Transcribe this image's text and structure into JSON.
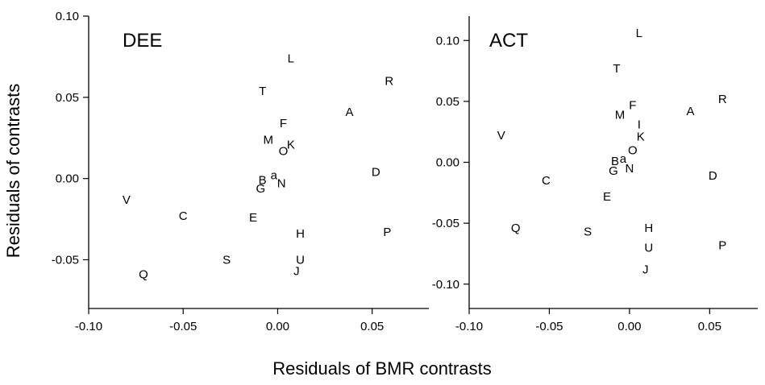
{
  "figure": {
    "shared_xlabel": "Residuals of BMR contrasts",
    "shared_ylabel": "Residuals of contrasts"
  },
  "chart_data": [
    {
      "type": "scatter",
      "title": "DEE",
      "xlabel": "Residuals of BMR contrasts",
      "ylabel": "Residuals of contrasts",
      "xlim": [
        -0.1,
        0.08
      ],
      "ylim": [
        -0.08,
        0.1
      ],
      "xticks": [
        -0.1,
        -0.05,
        0.0,
        0.05
      ],
      "xtick_labels": [
        "-0.10",
        "-0.05",
        "0.00",
        "0.05"
      ],
      "yticks": [
        -0.05,
        0.0,
        0.05,
        0.1
      ],
      "ytick_labels": [
        "-0.05",
        "0.00",
        "0.05",
        "0.10"
      ],
      "grid": false,
      "points": [
        {
          "label": "L",
          "x": 0.007,
          "y": 0.074
        },
        {
          "label": "R",
          "x": 0.059,
          "y": 0.06
        },
        {
          "label": "T",
          "x": -0.008,
          "y": 0.054
        },
        {
          "label": "A",
          "x": 0.038,
          "y": 0.041
        },
        {
          "label": "F",
          "x": 0.003,
          "y": 0.034
        },
        {
          "label": "M",
          "x": -0.005,
          "y": 0.024
        },
        {
          "label": "K",
          "x": 0.007,
          "y": 0.021
        },
        {
          "label": "O",
          "x": 0.003,
          "y": 0.017
        },
        {
          "label": "D",
          "x": 0.052,
          "y": 0.004
        },
        {
          "label": "a",
          "x": -0.002,
          "y": 0.002
        },
        {
          "label": "B",
          "x": -0.008,
          "y": -0.001
        },
        {
          "label": "N",
          "x": 0.002,
          "y": -0.003
        },
        {
          "label": "G",
          "x": -0.009,
          "y": -0.006
        },
        {
          "label": "V",
          "x": -0.08,
          "y": -0.013
        },
        {
          "label": "C",
          "x": -0.05,
          "y": -0.023
        },
        {
          "label": "E",
          "x": -0.013,
          "y": -0.024
        },
        {
          "label": "P",
          "x": 0.058,
          "y": -0.033
        },
        {
          "label": "H",
          "x": 0.012,
          "y": -0.034
        },
        {
          "label": "S",
          "x": -0.027,
          "y": -0.05
        },
        {
          "label": "U",
          "x": 0.012,
          "y": -0.05
        },
        {
          "label": "J",
          "x": 0.01,
          "y": -0.057
        },
        {
          "label": "Q",
          "x": -0.071,
          "y": -0.059
        }
      ]
    },
    {
      "type": "scatter",
      "title": "ACT",
      "xlabel": "Residuals of BMR contrasts",
      "ylabel": "Residuals of contrasts",
      "xlim": [
        -0.1,
        0.08
      ],
      "ylim": [
        -0.12,
        0.12
      ],
      "xticks": [
        -0.1,
        -0.05,
        0.0,
        0.05
      ],
      "xtick_labels": [
        "-0.10",
        "-0.05",
        "0.00",
        "0.05"
      ],
      "yticks": [
        -0.1,
        -0.05,
        0.0,
        0.05,
        0.1
      ],
      "ytick_labels": [
        "-0.10",
        "-0.05",
        "0.00",
        "0.05",
        "0.10"
      ],
      "grid": false,
      "points": [
        {
          "label": "L",
          "x": 0.006,
          "y": 0.106
        },
        {
          "label": "T",
          "x": -0.008,
          "y": 0.077
        },
        {
          "label": "R",
          "x": 0.058,
          "y": 0.052
        },
        {
          "label": "F",
          "x": 0.002,
          "y": 0.047
        },
        {
          "label": "A",
          "x": 0.038,
          "y": 0.042
        },
        {
          "label": "M",
          "x": -0.006,
          "y": 0.039
        },
        {
          "label": "I",
          "x": 0.006,
          "y": 0.031
        },
        {
          "label": "V",
          "x": -0.08,
          "y": 0.022
        },
        {
          "label": "K",
          "x": 0.007,
          "y": 0.021
        },
        {
          "label": "O",
          "x": 0.002,
          "y": 0.01
        },
        {
          "label": "a",
          "x": -0.004,
          "y": 0.003
        },
        {
          "label": "B",
          "x": -0.009,
          "y": 0.001
        },
        {
          "label": "N",
          "x": 0.0,
          "y": -0.005
        },
        {
          "label": "G",
          "x": -0.01,
          "y": -0.007
        },
        {
          "label": "D",
          "x": 0.052,
          "y": -0.011
        },
        {
          "label": "C",
          "x": -0.052,
          "y": -0.015
        },
        {
          "label": "E",
          "x": -0.014,
          "y": -0.028
        },
        {
          "label": "H",
          "x": 0.012,
          "y": -0.054
        },
        {
          "label": "Q",
          "x": -0.071,
          "y": -0.054
        },
        {
          "label": "S",
          "x": -0.026,
          "y": -0.057
        },
        {
          "label": "U",
          "x": 0.012,
          "y": -0.07
        },
        {
          "label": "P",
          "x": 0.058,
          "y": -0.068
        },
        {
          "label": "J",
          "x": 0.01,
          "y": -0.088
        }
      ]
    }
  ]
}
